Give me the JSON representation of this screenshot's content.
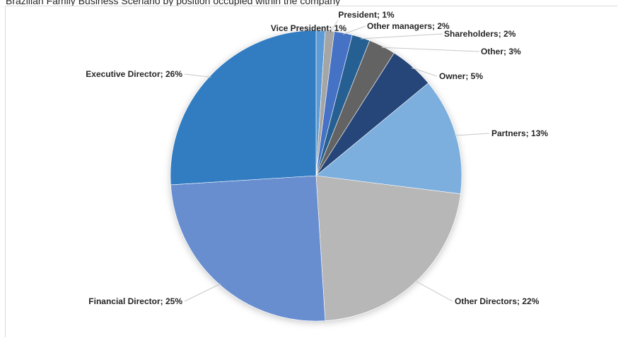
{
  "chart_data": {
    "type": "pie",
    "title": "Brazilian Family Business Scenario by position occupied within the company",
    "slices": [
      {
        "name": "Vice President",
        "value": 1,
        "label": "Vice President; 1%",
        "color": "#5b9bd5"
      },
      {
        "name": "President",
        "value": 1,
        "label": "President; 1%",
        "color": "#a5a5a5"
      },
      {
        "name": "Other managers",
        "value": 2,
        "label": "Other managers; 2%",
        "color": "#4472c4"
      },
      {
        "name": "Shareholders",
        "value": 2,
        "label": "Shareholders; 2%",
        "color": "#255e91"
      },
      {
        "name": "Other",
        "value": 3,
        "label": "Other; 3%",
        "color": "#636363"
      },
      {
        "name": "Owner",
        "value": 5,
        "label": "Owner; 5%",
        "color": "#264478"
      },
      {
        "name": "Partners",
        "value": 13,
        "label": "Partners; 13%",
        "color": "#7cafdd"
      },
      {
        "name": "Other Directors",
        "value": 22,
        "label": "Other Directors; 22%",
        "color": "#b7b7b7"
      },
      {
        "name": "Financial Director",
        "value": 25,
        "label": "Financial Director; 25%",
        "color": "#698ed0"
      },
      {
        "name": "Executive Director",
        "value": 26,
        "label": "Executive Director; 26%",
        "color": "#327dc2"
      }
    ],
    "start_angle_deg": 0,
    "direction": "clockwise"
  }
}
